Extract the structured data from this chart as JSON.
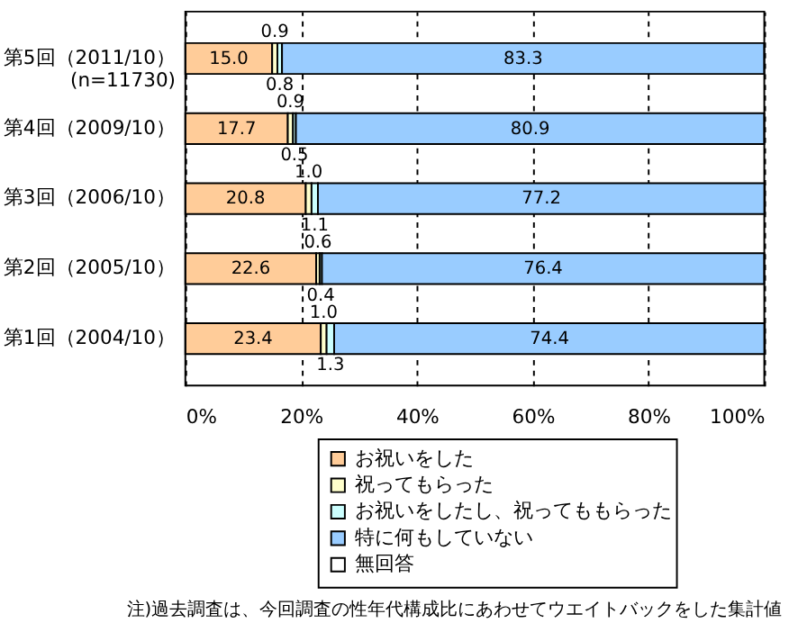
{
  "chart_data": {
    "type": "bar",
    "orientation": "horizontal",
    "stacked": true,
    "categories": [
      "第5回（2011/10）\n(n=11730)",
      "第4回（2009/10）",
      "第3回（2006/10）",
      "第2回（2005/10）",
      "第1回（2004/10）"
    ],
    "series": [
      {
        "name": "お祝いをした",
        "color": "#ffcc99",
        "values": [
          15.0,
          17.7,
          20.8,
          22.6,
          23.4
        ],
        "value_labels": [
          "15.0",
          "17.7",
          "20.8",
          "22.6",
          "23.4"
        ]
      },
      {
        "name": "祝ってもらった",
        "color": "#ffffcc",
        "values": [
          0.9,
          0.9,
          1.0,
          0.6,
          1.0
        ],
        "value_labels": [
          "0.9",
          "0.9",
          "1.0",
          "0.6",
          "1.0"
        ]
      },
      {
        "name": "お祝いをしたし、祝ってももらった",
        "color": "#ccffff",
        "values": [
          0.8,
          0.5,
          1.1,
          0.4,
          1.3
        ],
        "value_labels": [
          "0.8",
          "0.5",
          "1.1",
          "0.4",
          "1.3"
        ]
      },
      {
        "name": "特に何もしていない",
        "color": "#99ccff",
        "values": [
          83.3,
          80.9,
          77.2,
          76.4,
          74.4
        ],
        "value_labels": [
          "83.3",
          "80.9",
          "77.2",
          "76.4",
          "74.4"
        ]
      },
      {
        "name": "無回答",
        "color": "#ffffff",
        "values": [
          null,
          null,
          null,
          null,
          null
        ]
      }
    ],
    "xlim": [
      0,
      100
    ],
    "xticks": [
      {
        "value": 0,
        "label": "0%"
      },
      {
        "value": 20,
        "label": "20%"
      },
      {
        "value": 40,
        "label": "40%"
      },
      {
        "value": 60,
        "label": "60%"
      },
      {
        "value": 80,
        "label": "80%"
      },
      {
        "value": 100,
        "label": "100%"
      }
    ],
    "grid": "x",
    "legend": "bottom",
    "annotations": [
      "注)過去調査は、今回調査の性年代構成比にあわせてウエイトバックをした集計値"
    ]
  }
}
